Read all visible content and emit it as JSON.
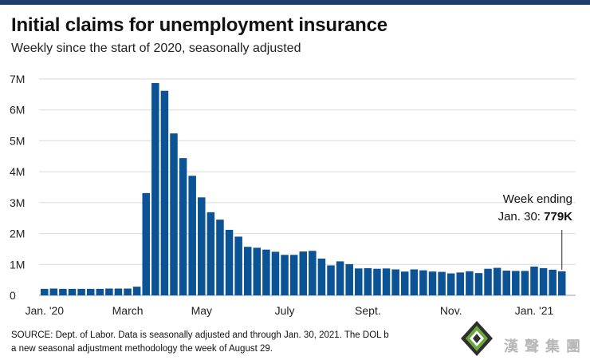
{
  "header": {
    "title": "Initial claims for unemployment insurance",
    "subtitle": "Weekly since the start of 2020, seasonally adjusted"
  },
  "footer": {
    "source": "SOURCE: Dept. of Labor. Data is seasonally adjusted and through Jan. 30, 2021. The DOL b",
    "source_line2": "a new seasonal adjustment methodology the week of August 29."
  },
  "watermark": {
    "text": "漢聲集團"
  },
  "colors": {
    "bar": "#0b5394",
    "grid": "#d9d9d9",
    "topbar": "#1d3f6e"
  },
  "chart_data": {
    "type": "bar",
    "title": "Initial claims for unemployment insurance",
    "subtitle": "Weekly since the start of 2020, seasonally adjusted",
    "ylim": [
      0,
      7000000
    ],
    "yticks": [
      0,
      1000000,
      2000000,
      3000000,
      4000000,
      5000000,
      6000000,
      7000000
    ],
    "ytick_labels": [
      "0",
      "1M",
      "2M",
      "3M",
      "4M",
      "5M",
      "6M",
      "7M"
    ],
    "xtick_labels": [
      {
        "label": "Jan. '20",
        "index": 0
      },
      {
        "label": "March",
        "index": 9
      },
      {
        "label": "May",
        "index": 17
      },
      {
        "label": "July",
        "index": 26
      },
      {
        "label": "Sept.",
        "index": 35
      },
      {
        "label": "Nov.",
        "index": 44
      },
      {
        "label": "Jan. '21",
        "index": 53
      }
    ],
    "grid": true,
    "annotation": {
      "line1": "Week ending",
      "line2_prefix": "Jan. 30: ",
      "line2_value": "779K",
      "bar_index": 56
    },
    "values": [
      210000,
      220000,
      210000,
      210000,
      210000,
      210000,
      210000,
      220000,
      220000,
      220000,
      280000,
      3310000,
      6870000,
      6620000,
      5240000,
      4440000,
      3870000,
      3170000,
      2690000,
      2450000,
      2120000,
      1900000,
      1570000,
      1540000,
      1480000,
      1410000,
      1310000,
      1310000,
      1420000,
      1440000,
      1190000,
      970000,
      1100000,
      1010000,
      870000,
      880000,
      860000,
      870000,
      840000,
      770000,
      840000,
      810000,
      770000,
      760000,
      710000,
      740000,
      780000,
      720000,
      860000,
      890000,
      800000,
      790000,
      790000,
      930000,
      880000,
      830000,
      779000
    ]
  }
}
